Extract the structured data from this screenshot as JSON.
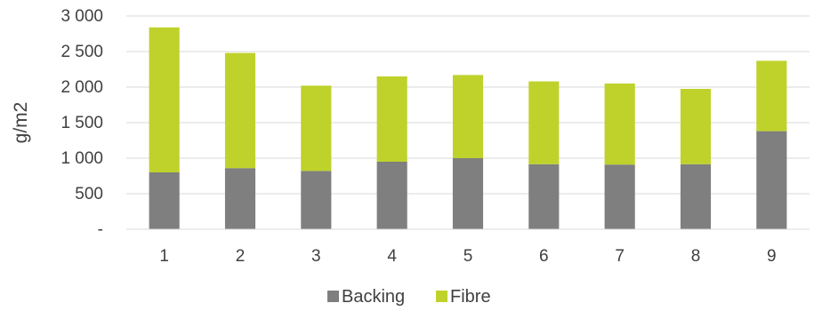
{
  "chart_data": {
    "type": "bar",
    "stacked": true,
    "categories": [
      "1",
      "2",
      "3",
      "4",
      "5",
      "6",
      "7",
      "8",
      "9"
    ],
    "series": [
      {
        "name": "Backing",
        "color": "#7f7f7f",
        "values": [
          800,
          860,
          820,
          950,
          1000,
          915,
          910,
          915,
          1380
        ]
      },
      {
        "name": "Fibre",
        "color": "#bfd22b",
        "values": [
          2040,
          1620,
          1200,
          1200,
          1170,
          1165,
          1140,
          1060,
          990
        ]
      }
    ],
    "title": "",
    "xlabel": "",
    "ylabel": "g/m2",
    "ylim": [
      0,
      3000
    ],
    "yticks": [
      0,
      500,
      1000,
      1500,
      2000,
      2500,
      3000
    ],
    "ytick_labels": [
      "-",
      "500",
      "1 000",
      "1 500",
      "2 000",
      "2 500",
      "3 000"
    ],
    "grid": true,
    "grid_color": "#d9d9d9",
    "legend_position": "bottom"
  }
}
